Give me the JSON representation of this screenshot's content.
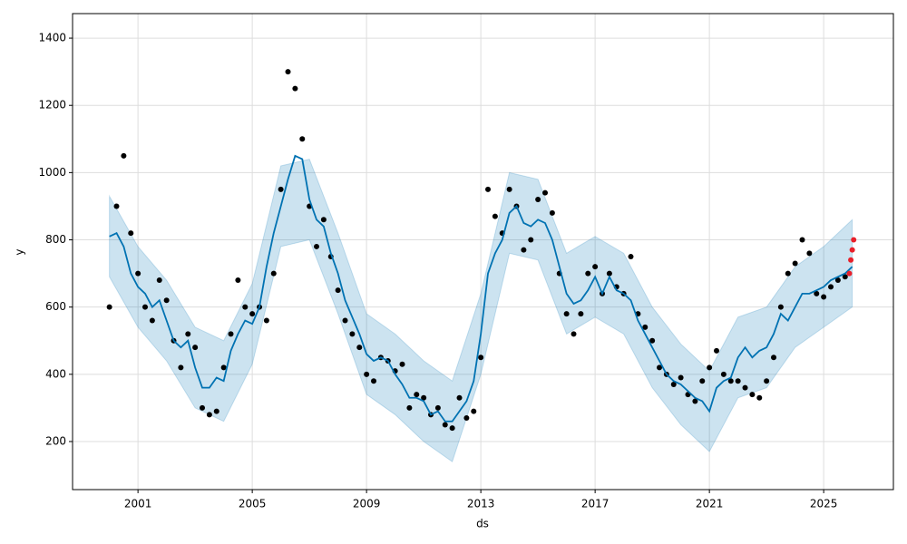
{
  "chart_data": {
    "type": "forecast",
    "xlabel": "ds",
    "ylabel": "y",
    "xlim": [
      1998.71,
      2027.44
    ],
    "xticks": [
      2001,
      2005,
      2009,
      2013,
      2017,
      2021,
      2025
    ],
    "ylim": [
      57,
      1473
    ],
    "yticks": [
      200,
      400,
      600,
      800,
      1000,
      1200,
      1400
    ],
    "grid": true,
    "series": [
      {
        "kind": "band",
        "color": "#0072b2",
        "x": [
          2000,
          2001,
          2002,
          2003,
          2004,
          2005,
          2006,
          2007,
          2008,
          2009,
          2010,
          2011,
          2012,
          2013,
          2014,
          2015,
          2016,
          2017,
          2018,
          2019,
          2020,
          2021,
          2022,
          2023,
          2024,
          2025,
          2026
        ],
        "lower": [
          690,
          540,
          440,
          300,
          260,
          430,
          780,
          800,
          580,
          340,
          280,
          200,
          140,
          400,
          760,
          740,
          520,
          570,
          520,
          360,
          250,
          170,
          330,
          360,
          480,
          540,
          600
        ],
        "upper": [
          930,
          780,
          680,
          540,
          500,
          670,
          1020,
          1040,
          820,
          580,
          520,
          440,
          380,
          640,
          1000,
          980,
          760,
          810,
          760,
          600,
          490,
          410,
          570,
          600,
          720,
          780,
          860
        ]
      },
      {
        "kind": "scatter",
        "color": "#000000",
        "x": [
          2000,
          2000.25,
          2000.5,
          2000.75,
          2001,
          2001.25,
          2001.5,
          2001.75,
          2002,
          2002.25,
          2002.5,
          2002.75,
          2003,
          2003.25,
          2003.5,
          2003.75,
          2004,
          2004.25,
          2004.5,
          2004.75,
          2005,
          2005.25,
          2005.5,
          2005.75,
          2006,
          2006.25,
          2006.5,
          2006.75,
          2007,
          2007.25,
          2007.5,
          2007.75,
          2008,
          2008.25,
          2008.5,
          2008.75,
          2009,
          2009.25,
          2009.5,
          2009.75,
          2010,
          2010.25,
          2010.5,
          2010.75,
          2011,
          2011.25,
          2011.5,
          2011.75,
          2012,
          2012.25,
          2012.5,
          2012.75,
          2013,
          2013.25,
          2013.5,
          2013.75,
          2014,
          2014.25,
          2014.5,
          2014.75,
          2015,
          2015.25,
          2015.5,
          2015.75,
          2016,
          2016.25,
          2016.5,
          2016.75,
          2017,
          2017.25,
          2017.5,
          2017.75,
          2018,
          2018.25,
          2018.5,
          2018.75,
          2019,
          2019.25,
          2019.5,
          2019.75,
          2020,
          2020.25,
          2020.5,
          2020.75,
          2021,
          2021.25,
          2021.5,
          2021.75,
          2022,
          2022.25,
          2022.5,
          2022.75,
          2023,
          2023.25,
          2023.5,
          2023.75,
          2024,
          2024.25,
          2024.5,
          2024.75,
          2025,
          2025.25,
          2025.5,
          2025.75
        ],
        "values": [
          600,
          900,
          1050,
          820,
          700,
          600,
          560,
          680,
          620,
          500,
          420,
          520,
          480,
          300,
          280,
          290,
          420,
          520,
          680,
          600,
          580,
          600,
          560,
          700,
          950,
          1300,
          1250,
          1100,
          900,
          780,
          860,
          750,
          650,
          560,
          520,
          480,
          400,
          380,
          450,
          440,
          410,
          430,
          300,
          340,
          330,
          280,
          300,
          250,
          240,
          330,
          270,
          290,
          450,
          950,
          870,
          820,
          950,
          900,
          770,
          800,
          920,
          940,
          880,
          700,
          580,
          520,
          580,
          700,
          720,
          640,
          700,
          660,
          640,
          750,
          580,
          540,
          500,
          420,
          400,
          370,
          390,
          340,
          320,
          380,
          420,
          470,
          400,
          380,
          380,
          360,
          340,
          330,
          380,
          450,
          600,
          700,
          730,
          800,
          760,
          640,
          630,
          660,
          680,
          690
        ]
      },
      {
        "kind": "line",
        "color": "#0072b2",
        "x": [
          2000,
          2000.25,
          2000.5,
          2000.75,
          2001,
          2001.25,
          2001.5,
          2001.75,
          2002,
          2002.25,
          2002.5,
          2002.75,
          2003,
          2003.25,
          2003.5,
          2003.75,
          2004,
          2004.25,
          2004.5,
          2004.75,
          2005,
          2005.25,
          2005.5,
          2005.75,
          2006,
          2006.25,
          2006.5,
          2006.75,
          2007,
          2007.25,
          2007.5,
          2007.75,
          2008,
          2008.25,
          2008.5,
          2008.75,
          2009,
          2009.25,
          2009.5,
          2009.75,
          2010,
          2010.25,
          2010.5,
          2010.75,
          2011,
          2011.25,
          2011.5,
          2011.75,
          2012,
          2012.25,
          2012.5,
          2012.75,
          2013,
          2013.25,
          2013.5,
          2013.75,
          2014,
          2014.25,
          2014.5,
          2014.75,
          2015,
          2015.25,
          2015.5,
          2015.75,
          2016,
          2016.25,
          2016.5,
          2016.75,
          2017,
          2017.25,
          2017.5,
          2017.75,
          2018,
          2018.25,
          2018.5,
          2018.75,
          2019,
          2019.25,
          2019.5,
          2019.75,
          2020,
          2020.25,
          2020.5,
          2020.75,
          2021,
          2021.25,
          2021.5,
          2021.75,
          2022,
          2022.25,
          2022.5,
          2022.75,
          2023,
          2023.25,
          2023.5,
          2023.75,
          2024,
          2024.25,
          2024.5,
          2024.75,
          2025,
          2025.25,
          2025.5,
          2025.75,
          2026
        ],
        "values": [
          810,
          820,
          780,
          700,
          660,
          640,
          600,
          620,
          560,
          500,
          480,
          500,
          420,
          360,
          360,
          390,
          380,
          470,
          520,
          560,
          550,
          600,
          720,
          820,
          900,
          980,
          1050,
          1040,
          920,
          860,
          840,
          760,
          700,
          620,
          570,
          520,
          460,
          440,
          450,
          440,
          400,
          370,
          330,
          330,
          320,
          280,
          290,
          260,
          260,
          290,
          320,
          380,
          520,
          700,
          760,
          800,
          880,
          900,
          850,
          840,
          860,
          850,
          800,
          720,
          640,
          610,
          620,
          650,
          690,
          640,
          690,
          650,
          640,
          620,
          560,
          520,
          480,
          440,
          400,
          380,
          370,
          350,
          330,
          320,
          290,
          360,
          380,
          390,
          450,
          480,
          450,
          470,
          480,
          520,
          580,
          560,
          600,
          640,
          640,
          650,
          660,
          680,
          690,
          700,
          720
        ]
      },
      {
        "kind": "scatter",
        "color": "#e8202a",
        "x": [
          2025.9,
          2025.95,
          2026.0,
          2026.05
        ],
        "values": [
          700,
          740,
          770,
          800
        ]
      }
    ]
  }
}
